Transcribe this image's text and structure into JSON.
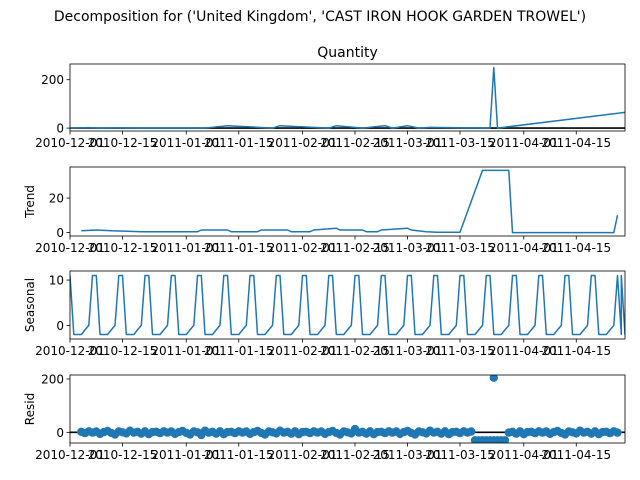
{
  "figure": {
    "title": "Decomposition for ('United Kingdom', 'CAST IRON HOOK GARDEN TROWEL')"
  },
  "chart_data": {
    "type": "line",
    "x_tick_labels": [
      "2010-12-01",
      "2010-12-15",
      "2011-01-01",
      "2011-01-15",
      "2011-02-01",
      "2011-02-15",
      "2011-03-01",
      "2011-03-15",
      "2011-04-01",
      "2011-04-15"
    ],
    "x_range": [
      "2010-12-01",
      "2011-04-28"
    ],
    "panels": [
      {
        "name": "observed",
        "title": "Quantity",
        "ylabel": "",
        "style": "line",
        "ylim": [
          -12,
          265
        ],
        "yticks": [
          0,
          200
        ],
        "x": [
          "2010-12-01",
          "2010-12-06",
          "2010-12-09",
          "2010-12-14",
          "2010-12-20",
          "2011-01-06",
          "2011-01-12",
          "2011-01-24",
          "2011-01-26",
          "2011-02-08",
          "2011-02-10",
          "2011-02-17",
          "2011-02-23",
          "2011-02-25",
          "2011-03-01",
          "2011-03-04",
          "2011-03-07",
          "2011-03-23",
          "2011-03-24",
          "2011-03-25",
          "2011-04-28"
        ],
        "y": [
          0,
          2,
          0,
          1,
          0,
          0,
          10,
          0,
          10,
          0,
          10,
          0,
          10,
          0,
          10,
          0,
          3,
          0,
          250,
          0,
          65
        ],
        "baseline": 0
      },
      {
        "name": "trend",
        "title": "",
        "ylabel": "Trend",
        "style": "line",
        "ylim": [
          -2,
          38
        ],
        "yticks": [
          0,
          20
        ],
        "x": [
          "2010-12-04",
          "2010-12-08",
          "2010-12-12",
          "2010-12-20",
          "2011-01-04",
          "2011-01-05",
          "2011-01-12",
          "2011-01-13",
          "2011-01-20",
          "2011-01-21",
          "2011-01-28",
          "2011-01-29",
          "2011-02-03",
          "2011-02-04",
          "2011-02-10",
          "2011-02-11",
          "2011-02-17",
          "2011-02-18",
          "2011-02-21",
          "2011-02-22",
          "2011-03-01",
          "2011-03-02",
          "2011-03-06",
          "2011-03-09",
          "2011-03-15",
          "2011-03-21",
          "2011-03-28",
          "2011-03-29",
          "2011-04-25",
          "2011-04-26"
        ],
        "y": [
          1,
          1.5,
          1,
          0.5,
          0.5,
          1.5,
          1.5,
          0.5,
          0.5,
          1.5,
          1.5,
          0.5,
          0.5,
          1.5,
          2.5,
          1.5,
          1.5,
          0.5,
          0.5,
          1.5,
          2.5,
          1.5,
          0.5,
          0.2,
          0.2,
          36,
          36,
          0,
          0,
          10
        ],
        "baseline": null
      },
      {
        "name": "seasonal",
        "title": "",
        "ylabel": "Seasonal",
        "style": "line",
        "period_days": 7,
        "cycle_offsets_days": [
          0,
          1,
          3,
          4,
          5,
          6,
          7
        ],
        "cycle_values": [
          11,
          -2,
          -2,
          -1,
          0,
          11,
          -2
        ],
        "first_peak": "2010-12-01",
        "last_point": "2011-04-28",
        "last_value": -1,
        "ylim": [
          -3,
          12
        ],
        "yticks": [
          0,
          10
        ],
        "baseline": null
      },
      {
        "name": "resid",
        "title": "",
        "ylabel": "Resid",
        "style": "scatter",
        "ylim": [
          -40,
          215
        ],
        "yticks": [
          0,
          200
        ],
        "x_start": "2010-12-04",
        "x_end": "2011-04-26",
        "step_days": 1,
        "pattern": [
          2,
          -3,
          4,
          -1,
          3,
          -6,
          1,
          5,
          -2,
          -8,
          3,
          0,
          -4,
          6,
          -1,
          2,
          -5,
          4,
          -7,
          1
        ],
        "gap_start": "2011-03-19",
        "gap_end": "2011-03-27",
        "gap_value": -30,
        "outlier_x": "2011-03-24",
        "outlier_y": 205,
        "extra_points": [
          {
            "x": "2011-02-15",
            "y": 12
          },
          {
            "x": "2011-01-05",
            "y": -10
          }
        ],
        "baseline": 0
      }
    ],
    "color": "#1f77b4",
    "grid": false
  }
}
